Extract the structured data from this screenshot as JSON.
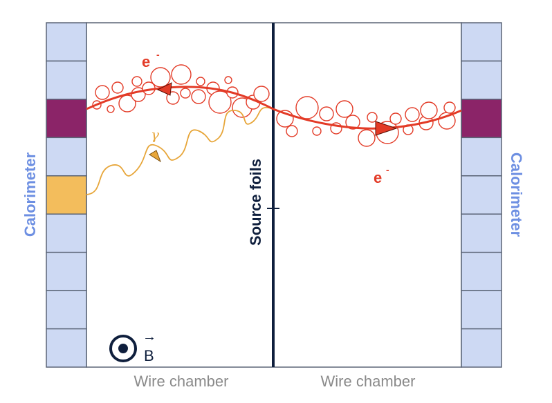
{
  "labels": {
    "left_calorimeter": "Calorimeter",
    "right_calorimeter": "Calorimeter",
    "source_foils": "Source foils",
    "left_wire_chamber": "Wire chamber",
    "right_wire_chamber": "Wire chamber",
    "electron_top": "e",
    "electron_top_sup": "-",
    "electron_right": "e",
    "electron_right_sup": "-",
    "gamma": "γ",
    "field": "B",
    "field_arrow": "→"
  },
  "calorimeter": {
    "left_blocks": [
      "normal",
      "normal",
      "hit-electron",
      "normal",
      "hit-gamma",
      "normal",
      "normal",
      "normal",
      "normal"
    ],
    "right_blocks": [
      "normal",
      "normal",
      "hit-electron",
      "normal",
      "normal",
      "normal",
      "normal",
      "normal",
      "normal"
    ]
  },
  "colors": {
    "calorimeter_block": "#cdd9f3",
    "calorimeter_border": "#5b6577",
    "electron_hit": "#8b2468",
    "gamma_hit": "#f3bd5c",
    "track": "#e33b27",
    "gamma_track": "#e7a63a",
    "foil": "#0f1f3d",
    "calorimeter_label": "#6d8fe2",
    "chamber_label": "#8a8a8a"
  }
}
